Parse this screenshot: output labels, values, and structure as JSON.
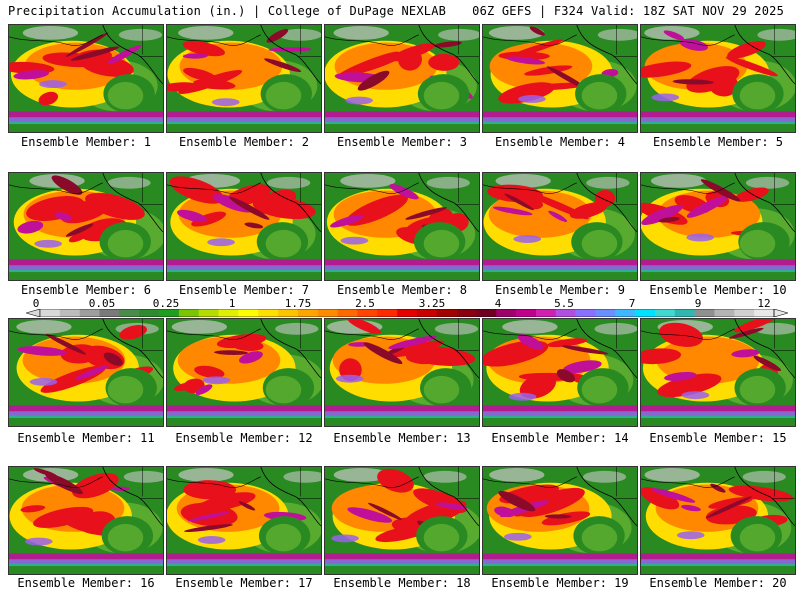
{
  "header": {
    "title": "Precipitation Accumulation (in.) | College of DuPage NEXLAB",
    "valid": "06Z GEFS | F324 Valid: 18Z SAT NOV 29 2025"
  },
  "members": [
    "Ensemble Member: 1",
    "Ensemble Member: 2",
    "Ensemble Member: 3",
    "Ensemble Member: 4",
    "Ensemble Member: 5",
    "Ensemble Member: 6",
    "Ensemble Member: 7",
    "Ensemble Member: 8",
    "Ensemble Member: 9",
    "Ensemble Member: 10",
    "Ensemble Member: 11",
    "Ensemble Member: 12",
    "Ensemble Member: 13",
    "Ensemble Member: 14",
    "Ensemble Member: 15",
    "Ensemble Member: 16",
    "Ensemble Member: 17",
    "Ensemble Member: 18",
    "Ensemble Member: 19",
    "Ensemble Member: 20"
  ],
  "colorbar": {
    "ticks": [
      "0",
      "0.05",
      "0.25",
      "1",
      "1.75",
      "2.5",
      "3.25",
      "4",
      "5.5",
      "7",
      "9",
      "12"
    ],
    "colors": [
      "#d9d9d9",
      "#bdbdbd",
      "#9e9e9e",
      "#7a7a7a",
      "#4a8c4a",
      "#2e8b2e",
      "#1f9e1f",
      "#7cc400",
      "#b5dc00",
      "#e0f000",
      "#ffff00",
      "#ffe000",
      "#ffc400",
      "#ffa500",
      "#ff8c00",
      "#ff6a00",
      "#ff4500",
      "#ff2a00",
      "#e60000",
      "#c80000",
      "#a50000",
      "#8b0010",
      "#700020",
      "#a0006a",
      "#c0008c",
      "#d020b0",
      "#b050e0",
      "#8a70ff",
      "#6a90ff",
      "#40b8ff",
      "#00e0ff",
      "#40d8d0",
      "#30b8b0",
      "#909090",
      "#b4b4b4",
      "#d0d0d0",
      "#e8e8e8"
    ]
  },
  "map_colors": {
    "land": "#2a8a22",
    "light": "#7ec63a",
    "yellow": "#ffdd00",
    "orange": "#ff8800",
    "red": "#e8101a",
    "darkred": "#8b0a2a",
    "magenta": "#c0109a",
    "purple": "#9a60f0",
    "cyan": "#30c8e0",
    "grey": "#c8c8c8"
  }
}
